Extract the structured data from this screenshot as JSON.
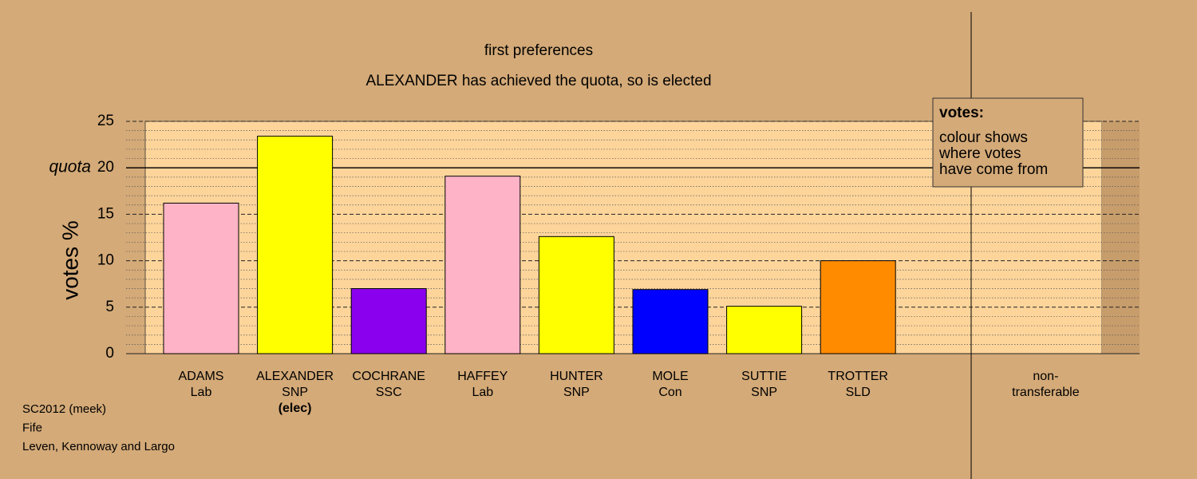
{
  "chart_data": {
    "type": "bar",
    "title": "first preferences",
    "subtitle": "ALEXANDER has achieved the quota, so is elected",
    "y_label": "votes %",
    "labels": [
      [
        "ADAMS",
        "Lab"
      ],
      [
        "ALEXANDER",
        "SNP",
        "(elec)"
      ],
      [
        "COCHRANE",
        "SSC"
      ],
      [
        "HAFFEY",
        "Lab"
      ],
      [
        "HUNTER",
        "SNP"
      ],
      [
        "MOLE",
        "Con"
      ],
      [
        "SUTTIE",
        "SNP"
      ],
      [
        "TROTTER",
        "SLD"
      ],
      null,
      [
        "non-",
        "transferable"
      ]
    ],
    "values": [
      16.2,
      23.4,
      7.0,
      19.1,
      12.6,
      6.9,
      5.1,
      10.0,
      null,
      0
    ],
    "colors": [
      "#ffb3c6",
      "#ffff00",
      "#8a00ee",
      "#ffb3c6",
      "#ffff00",
      "#0000ff",
      "#ffff00",
      "#ff8c00",
      null,
      null
    ],
    "ylim": [
      0,
      25
    ],
    "yticks": [
      0,
      5,
      10,
      15,
      20,
      25
    ],
    "minor_yticks": [
      1,
      2,
      3,
      4,
      6,
      7,
      8,
      9,
      11,
      12,
      13,
      14,
      16,
      17,
      18,
      19,
      21,
      22,
      23,
      24
    ],
    "quota": {
      "value": 20,
      "label": "quota"
    },
    "legend": {
      "title": "votes:",
      "text": [
        "colour shows",
        "where votes",
        "have come from"
      ]
    },
    "footer": [
      "SC2012 (meek)",
      "Fife",
      "Leven, Kennoway and Largo"
    ]
  }
}
